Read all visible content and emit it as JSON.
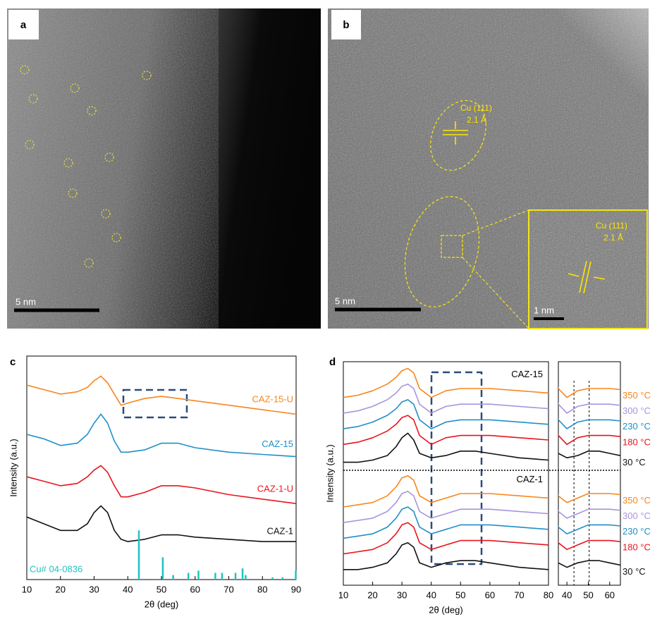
{
  "images": [
    {
      "label": "a",
      "scale_bar": "5 nm"
    },
    {
      "label": "b",
      "scale_bar": "5 nm",
      "annotations": [
        "Cu (111)",
        "2.1 Å"
      ],
      "inset": {
        "annotations": [
          "Cu (111)",
          "2.1 Å"
        ],
        "scale_bar": "1 nm"
      }
    }
  ],
  "chart_data": [
    {
      "label": "c",
      "type": "line",
      "xlabel": "2θ (deg)",
      "ylabel": "Intensity (a.u.)",
      "xlim": [
        10,
        90
      ],
      "xticks": [
        10,
        20,
        30,
        40,
        50,
        60,
        70,
        80,
        90
      ],
      "ylim": [
        0,
        100
      ],
      "x": [
        10,
        15,
        20,
        25,
        28,
        30,
        32,
        34,
        36,
        38,
        40,
        45,
        50,
        55,
        60,
        70,
        80,
        90
      ],
      "series": [
        {
          "name": "CAZ-15-U",
          "color": "#f7861d",
          "values": [
            87,
            85,
            83,
            84,
            86,
            89,
            91,
            88,
            83,
            78,
            79,
            81,
            82,
            81,
            80,
            78,
            76,
            74
          ]
        },
        {
          "name": "CAZ-15",
          "color": "#1f8fc8",
          "values": [
            65,
            63,
            60,
            61,
            65,
            70,
            74,
            70,
            62,
            57,
            57,
            58,
            61,
            61,
            59,
            57,
            56,
            55
          ]
        },
        {
          "name": "CAZ-1-U",
          "color": "#e8141c",
          "values": [
            46,
            44,
            42,
            43,
            46,
            49,
            51,
            48,
            42,
            37,
            37,
            39,
            42,
            42,
            41,
            38,
            36,
            34
          ]
        },
        {
          "name": "CAZ-1",
          "color": "#111111",
          "values": [
            28,
            25,
            22,
            22,
            25,
            30,
            33,
            30,
            22,
            18,
            17,
            18,
            20,
            20,
            19,
            18,
            17,
            17
          ]
        }
      ],
      "reference": {
        "name": "Cu# 04-0836",
        "color": "#1fc4c0",
        "x": [
          43.3,
          50.4,
          53.5,
          58,
          61,
          66,
          68,
          72,
          74.1,
          75,
          83,
          86,
          89.9
        ],
        "values": [
          22,
          10,
          2,
          3,
          4,
          3,
          3,
          3,
          5,
          2,
          1,
          1,
          4
        ]
      }
    },
    {
      "label": "d",
      "type": "line",
      "xlabel": "2θ (deg)",
      "ylabel": "Intensity (a.u.)",
      "xlim": [
        10,
        80
      ],
      "xticks": [
        10,
        20,
        30,
        40,
        50,
        60,
        70,
        80
      ],
      "ylim": [
        0,
        100
      ],
      "x": [
        10,
        15,
        20,
        25,
        28,
        30,
        32,
        34,
        36,
        40,
        45,
        50,
        55,
        60,
        70,
        80
      ],
      "groups": [
        {
          "name": "CAZ-15",
          "series": [
            {
              "name": "350 °C",
              "color": "#f7861d",
              "values": [
                84,
                85,
                87,
                90,
                93,
                96,
                97,
                95,
                88,
                84,
                87,
                88,
                88,
                88,
                87,
                86
              ]
            },
            {
              "name": "300 °C",
              "color": "#a994e0",
              "values": [
                77,
                78,
                80,
                83,
                86,
                89,
                90,
                88,
                81,
                77,
                80,
                81,
                81,
                81,
                80,
                79
              ]
            },
            {
              "name": "230 °C",
              "color": "#1f8fc8",
              "values": [
                70,
                71,
                73,
                76,
                79,
                82,
                83,
                81,
                74,
                70,
                73,
                74,
                74,
                74,
                73,
                72
              ]
            },
            {
              "name": "180 °C",
              "color": "#e8141c",
              "values": [
                63,
                64,
                66,
                69,
                72,
                75,
                76,
                74,
                67,
                63,
                66,
                67,
                67,
                67,
                66,
                65
              ]
            },
            {
              "name": "30 °C",
              "color": "#111111",
              "values": [
                55,
                55,
                56,
                58,
                62,
                66,
                68,
                65,
                59,
                57,
                58,
                60,
                60,
                59,
                57,
                56
              ]
            }
          ]
        },
        {
          "name": "CAZ-1",
          "series": [
            {
              "name": "350 °C",
              "color": "#f7861d",
              "values": [
                35,
                36,
                37,
                40,
                44,
                48,
                49,
                47,
                40,
                37,
                39,
                41,
                41,
                41,
                40,
                39
              ]
            },
            {
              "name": "300 °C",
              "color": "#a994e0",
              "values": [
                28,
                29,
                30,
                33,
                37,
                41,
                42,
                40,
                33,
                30,
                32,
                34,
                34,
                34,
                33,
                32
              ]
            },
            {
              "name": "230 °C",
              "color": "#1f8fc8",
              "values": [
                21,
                22,
                23,
                26,
                30,
                34,
                35,
                33,
                26,
                23,
                25,
                27,
                27,
                27,
                26,
                25
              ]
            },
            {
              "name": "180 °C",
              "color": "#e8141c",
              "values": [
                14,
                15,
                16,
                19,
                23,
                27,
                28,
                26,
                19,
                16,
                18,
                20,
                20,
                20,
                19,
                18
              ]
            },
            {
              "name": "30 °C",
              "color": "#111111",
              "values": [
                7,
                7,
                8,
                10,
                14,
                18,
                19,
                17,
                10,
                8,
                10,
                11,
                11,
                10,
                8,
                7
              ]
            }
          ]
        }
      ],
      "inset": {
        "xlim": [
          36,
          65
        ],
        "xticks": [
          40,
          50,
          60
        ],
        "ref_lines": [
          43.3,
          50.4
        ]
      }
    }
  ]
}
